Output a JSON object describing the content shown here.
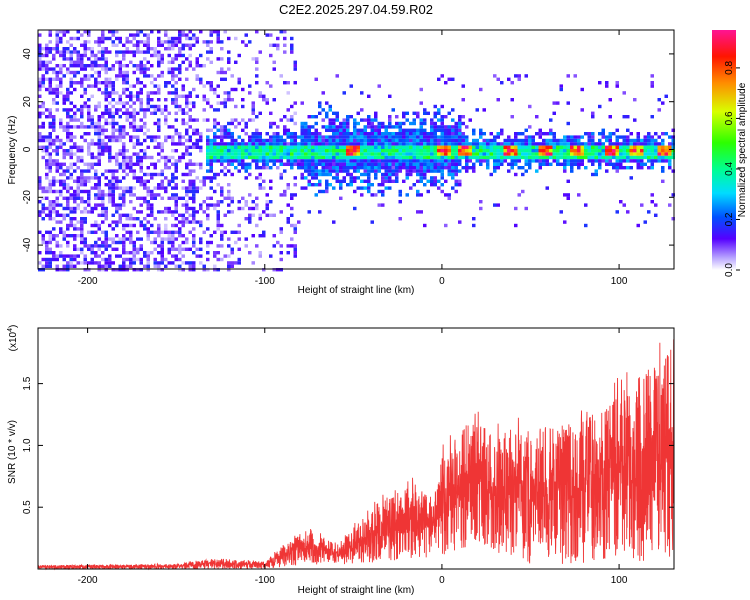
{
  "figure_title": "C2E2.2025.297.04.59.R02",
  "chart_data": [
    {
      "type": "heatmap",
      "title": "C2E2.2025.297.04.59.R02",
      "xlabel": "Height of straight line (km)",
      "ylabel": "Frequency (Hz)",
      "xlim": [
        -228,
        131
      ],
      "ylim": [
        -50,
        50
      ],
      "x_ticks": [
        -200,
        -100,
        0,
        100
      ],
      "y_ticks": [
        -40,
        -20,
        0,
        20,
        40
      ],
      "colorbar": {
        "label": "Normalized spectral amplitude",
        "range": [
          0.0,
          0.95
        ],
        "ticks": [
          0.0,
          0.2,
          0.4,
          0.6,
          0.8
        ]
      },
      "features": {
        "noise_region_x": [
          -228,
          -82
        ],
        "signal_band_freq_hz": [
          -5,
          5
        ],
        "signal_band_start_x": -135,
        "high_amplitude_centers_x": [
          -52,
          0,
          12,
          38,
          58,
          75,
          95,
          108,
          125
        ]
      }
    },
    {
      "type": "line",
      "xlabel": "Height of straight line (km)",
      "ylabel": "SNR (10 * v/v)",
      "y_scale_label": "(x10",
      "y_scale_exponent": "4",
      "xlim": [
        -228,
        131
      ],
      "ylim": [
        0,
        1.95
      ],
      "x_ticks": [
        -200,
        -100,
        0,
        100
      ],
      "y_ticks": [
        0.5,
        1.0,
        1.5
      ],
      "y_tick_labels": [
        "0.5",
        "1.0",
        "1.5"
      ],
      "color": "#ef3535",
      "envelope": {
        "x": [
          -228,
          -150,
          -130,
          -100,
          -88,
          -75,
          -60,
          -45,
          -30,
          -15,
          -5,
          0,
          10,
          20,
          30,
          40,
          60,
          80,
          100,
          110,
          120,
          131
        ],
        "upper": [
          0.03,
          0.04,
          0.08,
          0.06,
          0.2,
          0.32,
          0.2,
          0.4,
          0.6,
          0.7,
          0.55,
          0.9,
          1.1,
          1.25,
          1.05,
          1.1,
          1.15,
          1.2,
          1.4,
          1.45,
          1.75,
          1.8
        ],
        "lower": [
          0.0,
          0.0,
          0.0,
          0.0,
          0.02,
          0.04,
          0.03,
          0.05,
          0.06,
          0.08,
          0.08,
          0.1,
          0.15,
          0.2,
          0.15,
          0.05,
          0.03,
          0.05,
          0.1,
          0.05,
          0.08,
          0.1
        ]
      }
    }
  ]
}
